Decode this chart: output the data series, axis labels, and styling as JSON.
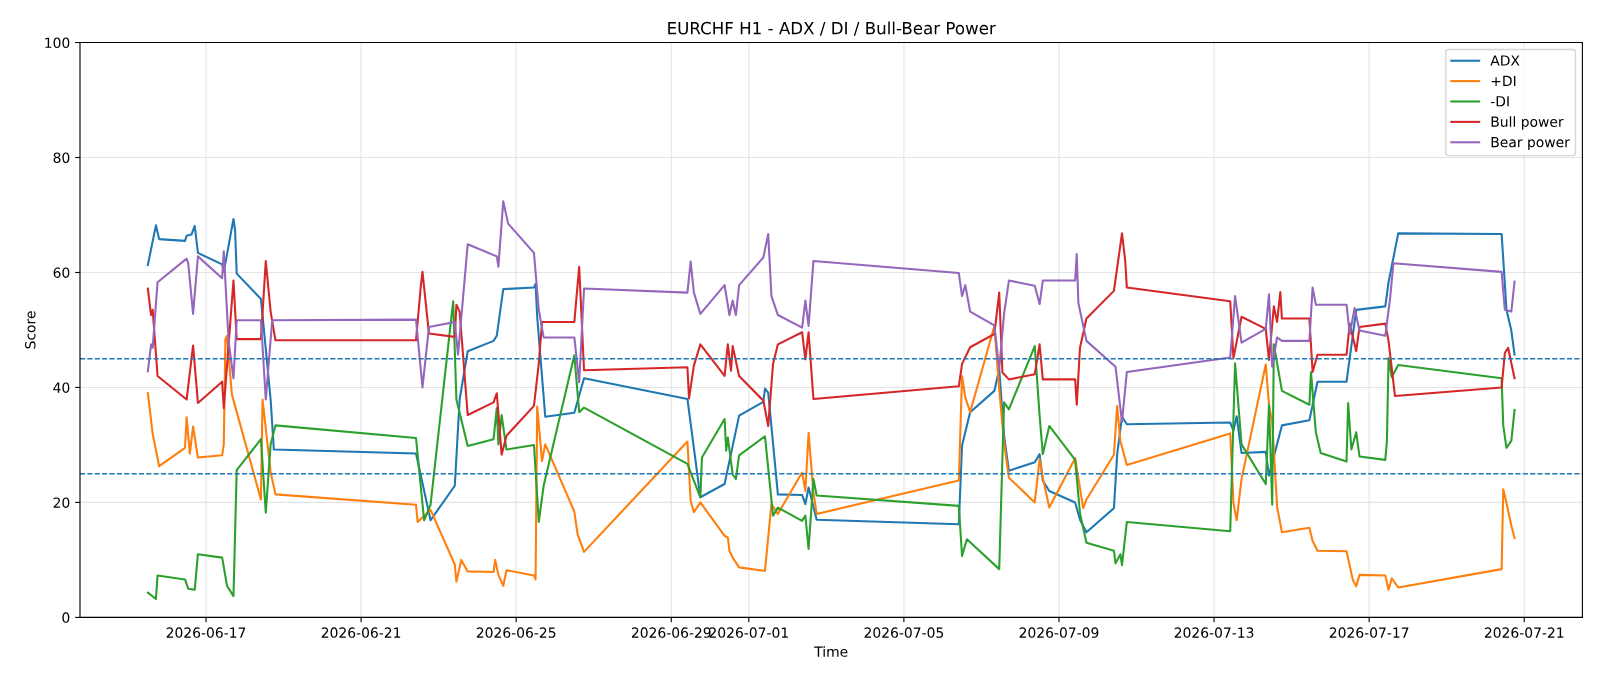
{
  "chart_data": {
    "type": "line",
    "title": "EURCHF H1 - ADX / DI / Bull-Bear Power",
    "xlabel": "Time",
    "ylabel": "Score",
    "xlim": [
      "2026-06-13T18:00",
      "2026-07-22T12:00"
    ],
    "xticks": [
      "2026-06-17",
      "2026-06-21",
      "2026-06-25",
      "2026-06-29",
      "2026-07-01",
      "2026-07-05",
      "2026-07-09",
      "2026-07-13",
      "2026-07-17",
      "2026-07-21"
    ],
    "ylim": [
      0,
      100
    ],
    "yticks": [
      0,
      20,
      40,
      60,
      80,
      100
    ],
    "grid": true,
    "legend": "top right",
    "ref_lines": [
      {
        "axis": "y",
        "value": 25,
        "color": "#1f77b4",
        "line_style": "dashed"
      },
      {
        "axis": "y",
        "value": 45,
        "color": "#1f77b4",
        "line_style": "dashed"
      }
    ],
    "series": [
      {
        "name": "ADX",
        "color": "#1f77b4",
        "x": [
          "2026-06-15T12:00",
          "2026-06-15T17:00",
          "2026-06-15T19:00",
          "2026-06-16T11:00",
          "2026-06-16T12:00",
          "2026-06-16T15:00",
          "2026-06-16T17:00",
          "2026-06-16T19:00",
          "2026-06-17T10:00",
          "2026-06-17T11:00",
          "2026-06-17T17:00",
          "2026-06-17T18:00",
          "2026-06-17T19:00",
          "2026-06-18T10:00",
          "2026-06-18T16:00",
          "2026-06-18T18:00",
          "2026-06-22T10:00",
          "2026-06-22T19:00",
          "2026-06-23T10:00",
          "2026-06-23T13:00",
          "2026-06-23T18:00",
          "2026-06-24T10:00",
          "2026-06-24T12:00",
          "2026-06-24T16:00",
          "2026-06-25T11:00",
          "2026-06-25T12:00",
          "2026-06-25T13:00",
          "2026-06-25T18:00",
          "2026-06-26T12:00",
          "2026-06-26T18:00",
          "2026-06-29T10:00",
          "2026-06-29T18:00",
          "2026-06-30T09:00",
          "2026-06-30T18:00",
          "2026-07-01T09:00",
          "2026-07-01T10:00",
          "2026-07-01T12:00",
          "2026-07-01T18:00",
          "2026-07-02T09:00",
          "2026-07-02T11:00",
          "2026-07-02T13:00",
          "2026-07-02T18:00",
          "2026-07-06T10:00",
          "2026-07-06T12:00",
          "2026-07-06T17:00",
          "2026-07-07T08:00",
          "2026-07-07T11:00",
          "2026-07-07T14:00",
          "2026-07-07T17:00",
          "2026-07-08T09:00",
          "2026-07-08T12:00",
          "2026-07-08T14:00",
          "2026-07-08T18:00",
          "2026-07-09T10:00",
          "2026-07-09T13:00",
          "2026-07-09T17:00",
          "2026-07-10T10:00",
          "2026-07-10T12:00",
          "2026-07-10T15:00",
          "2026-07-10T18:00",
          "2026-07-13T10:00",
          "2026-07-13T12:00",
          "2026-07-13T14:00",
          "2026-07-13T17:00",
          "2026-07-14T08:00",
          "2026-07-14T10:00",
          "2026-07-14T18:00",
          "2026-07-15T11:00",
          "2026-07-15T16:00",
          "2026-07-16T10:00",
          "2026-07-16T16:00",
          "2026-07-17T10:00",
          "2026-07-17T12:00",
          "2026-07-17T18:00",
          "2026-07-20T10:00",
          "2026-07-20T13:00",
          "2026-07-20T16:00",
          "2026-07-20T18:00"
        ],
        "values": [
          61.3,
          68.2,
          65.8,
          65.5,
          66.4,
          66.6,
          68.1,
          63.4,
          61.4,
          60.1,
          69.3,
          67.3,
          59.8,
          55.4,
          37.9,
          29.2,
          28.5,
          16.9,
          22.9,
          37.9,
          46.3,
          48.1,
          49.0,
          57.1,
          57.4,
          58.0,
          52.3,
          34.9,
          35.6,
          41.6,
          38.0,
          20.9,
          23.2,
          35.1,
          37.5,
          39.8,
          39.1,
          21.4,
          21.3,
          19.7,
          22.6,
          17.0,
          16.2,
          29.9,
          35.7,
          39.4,
          43.2,
          31.6,
          25.5,
          27.0,
          28.4,
          23.8,
          22.0,
          20.0,
          17.0,
          14.8,
          19.0,
          28.3,
          34.9,
          33.6,
          33.9,
          32.5,
          35.0,
          28.6,
          28.8,
          24.7,
          33.4,
          34.3,
          41.0,
          41.0,
          53.5,
          54.1,
          58.3,
          66.8,
          66.7,
          53.5,
          49.9,
          45.7
        ]
      },
      {
        "name": "+DI",
        "color": "#ff7f0e",
        "x": [
          "2026-06-15T12:00",
          "2026-06-15T15:00",
          "2026-06-15T19:00",
          "2026-06-16T11:00",
          "2026-06-16T12:00",
          "2026-06-16T14:00",
          "2026-06-16T16:00",
          "2026-06-16T19:00",
          "2026-06-17T10:00",
          "2026-06-17T11:00",
          "2026-06-17T12:00",
          "2026-06-17T13:00",
          "2026-06-17T16:00",
          "2026-06-18T10:00",
          "2026-06-18T11:00",
          "2026-06-18T16:00",
          "2026-06-18T19:00",
          "2026-06-22T10:00",
          "2026-06-22T11:00",
          "2026-06-22T19:00",
          "2026-06-23T10:00",
          "2026-06-23T11:00",
          "2026-06-23T14:00",
          "2026-06-23T18:00",
          "2026-06-24T10:00",
          "2026-06-24T11:00",
          "2026-06-24T13:00",
          "2026-06-24T16:00",
          "2026-06-24T18:00",
          "2026-06-25T11:00",
          "2026-06-25T12:00",
          "2026-06-25T13:00",
          "2026-06-25T16:00",
          "2026-06-25T18:00",
          "2026-06-26T12:00",
          "2026-06-26T14:00",
          "2026-06-26T18:00",
          "2026-06-29T10:00",
          "2026-06-29T12:00",
          "2026-06-29T14:00",
          "2026-06-29T18:00",
          "2026-06-30T09:00",
          "2026-06-30T11:00",
          "2026-06-30T12:00",
          "2026-06-30T14:00",
          "2026-06-30T18:00",
          "2026-07-01T10:00",
          "2026-07-01T14:00",
          "2026-07-01T18:00",
          "2026-07-02T09:00",
          "2026-07-02T11:00",
          "2026-07-02T13:00",
          "2026-07-02T16:00",
          "2026-07-02T18:00",
          "2026-07-06T10:00",
          "2026-07-06T12:00",
          "2026-07-06T14:00",
          "2026-07-06T17:00",
          "2026-07-07T08:00",
          "2026-07-07T11:00",
          "2026-07-07T14:00",
          "2026-07-07T17:00",
          "2026-07-08T09:00",
          "2026-07-08T12:00",
          "2026-07-08T14:00",
          "2026-07-08T18:00",
          "2026-07-09T10:00",
          "2026-07-09T15:00",
          "2026-07-09T17:00",
          "2026-07-10T10:00",
          "2026-07-10T12:00",
          "2026-07-10T14:00",
          "2026-07-10T18:00",
          "2026-07-13T10:00",
          "2026-07-13T12:00",
          "2026-07-13T14:00",
          "2026-07-13T17:00",
          "2026-07-14T08:00",
          "2026-07-14T10:00",
          "2026-07-14T12:00",
          "2026-07-14T15:00",
          "2026-07-14T18:00",
          "2026-07-15T11:00",
          "2026-07-15T13:00",
          "2026-07-15T16:00",
          "2026-07-16T10:00",
          "2026-07-16T14:00",
          "2026-07-16T16:00",
          "2026-07-16T18:00",
          "2026-07-17T10:00",
          "2026-07-17T12:00",
          "2026-07-17T14:00",
          "2026-07-17T18:00",
          "2026-07-20T10:00",
          "2026-07-20T11:00",
          "2026-07-20T13:00",
          "2026-07-20T16:00",
          "2026-07-20T18:00"
        ],
        "values": [
          39.0,
          31.9,
          26.3,
          29.5,
          34.8,
          28.5,
          33.2,
          27.8,
          28.2,
          30.1,
          48.4,
          49.0,
          38.8,
          20.5,
          37.9,
          25.3,
          21.4,
          19.6,
          16.6,
          18.7,
          9.2,
          6.2,
          10.0,
          8.0,
          7.9,
          10.0,
          7.4,
          5.5,
          8.2,
          7.3,
          6.6,
          36.7,
          27.2,
          30.1,
          18.4,
          14.5,
          11.4,
          30.6,
          20.3,
          18.3,
          20.0,
          14.2,
          13.9,
          11.6,
          10.4,
          8.7,
          8.1,
          19.7,
          18.0,
          25.2,
          22.0,
          32.1,
          21.7,
          18.0,
          23.8,
          42.0,
          38.3,
          35.7,
          50.7,
          39.7,
          30.4,
          24.3,
          20.0,
          27.5,
          24.3,
          19.1,
          27.7,
          19.0,
          20.5,
          28.3,
          36.8,
          30.7,
          26.5,
          32.0,
          19.9,
          16.9,
          24.1,
          44.0,
          37.0,
          33.8,
          19.3,
          14.8,
          15.6,
          13.3,
          11.6,
          11.5,
          6.4,
          5.4,
          7.4,
          7.3,
          4.8,
          6.8,
          5.2,
          8.4,
          22.3,
          19.9,
          16.0,
          13.8
        ]
      },
      {
        "name": "-DI",
        "color": "#2ca02c",
        "x": [
          "2026-06-15T12:00",
          "2026-06-15T17:00",
          "2026-06-15T18:00",
          "2026-06-16T11:00",
          "2026-06-16T13:00",
          "2026-06-16T17:00",
          "2026-06-16T19:00",
          "2026-06-17T10:00",
          "2026-06-17T13:00",
          "2026-06-17T17:00",
          "2026-06-17T19:00",
          "2026-06-18T10:00",
          "2026-06-18T13:00",
          "2026-06-18T16:00",
          "2026-06-18T19:00",
          "2026-06-22T10:00",
          "2026-06-22T15:00",
          "2026-06-22T19:00",
          "2026-06-23T09:00",
          "2026-06-23T11:00",
          "2026-06-23T18:00",
          "2026-06-24T10:00",
          "2026-06-24T12:00",
          "2026-06-24T13:00",
          "2026-06-24T15:00",
          "2026-06-24T18:00",
          "2026-06-25T11:00",
          "2026-06-25T14:00",
          "2026-06-25T17:00",
          "2026-06-26T12:00",
          "2026-06-26T15:00",
          "2026-06-26T18:00",
          "2026-06-29T10:00",
          "2026-06-29T18:00",
          "2026-06-29T19:00",
          "2026-06-30T09:00",
          "2026-06-30T10:00",
          "2026-06-30T11:00",
          "2026-06-30T14:00",
          "2026-06-30T16:00",
          "2026-06-30T18:00",
          "2026-07-01T10:00",
          "2026-07-01T15:00",
          "2026-07-01T18:00",
          "2026-07-02T09:00",
          "2026-07-02T11:00",
          "2026-07-02T13:00",
          "2026-07-02T16:00",
          "2026-07-02T18:00",
          "2026-07-06T10:00",
          "2026-07-06T12:00",
          "2026-07-06T15:00",
          "2026-07-07T11:00",
          "2026-07-07T14:00",
          "2026-07-07T17:00",
          "2026-07-08T09:00",
          "2026-07-08T12:00",
          "2026-07-08T14:00",
          "2026-07-08T18:00",
          "2026-07-09T10:00",
          "2026-07-09T13:00",
          "2026-07-09T17:00",
          "2026-07-10T10:00",
          "2026-07-10T11:00",
          "2026-07-10T14:00",
          "2026-07-10T15:00",
          "2026-07-10T18:00",
          "2026-07-13T10:00",
          "2026-07-13T13:00",
          "2026-07-13T17:00",
          "2026-07-14T08:00",
          "2026-07-14T10:00",
          "2026-07-14T12:00",
          "2026-07-14T13:00",
          "2026-07-14T18:00",
          "2026-07-15T11:00",
          "2026-07-15T12:00",
          "2026-07-15T15:00",
          "2026-07-15T18:00",
          "2026-07-16T10:00",
          "2026-07-16T11:00",
          "2026-07-16T13:00",
          "2026-07-16T16:00",
          "2026-07-16T18:00",
          "2026-07-17T10:00",
          "2026-07-17T11:00",
          "2026-07-17T12:00",
          "2026-07-17T14:00",
          "2026-07-17T18:00",
          "2026-07-20T10:00",
          "2026-07-20T11:00",
          "2026-07-20T13:00",
          "2026-07-20T16:00",
          "2026-07-20T18:00"
        ],
        "values": [
          4.3,
          3.2,
          7.3,
          6.6,
          5.0,
          4.8,
          11.0,
          10.4,
          5.5,
          3.7,
          25.6,
          31.0,
          18.2,
          30.1,
          33.4,
          31.2,
          16.9,
          19.6,
          55.0,
          37.9,
          29.8,
          31.0,
          36.4,
          30.1,
          35.2,
          29.2,
          30.0,
          16.6,
          22.9,
          45.6,
          35.7,
          36.5,
          26.7,
          20.9,
          27.8,
          34.5,
          29.0,
          31.3,
          24.9,
          24.1,
          28.2,
          31.5,
          17.7,
          19.1,
          16.8,
          17.7,
          11.9,
          24.1,
          21.2,
          19.4,
          10.7,
          13.6,
          8.4,
          37.4,
          36.2,
          47.2,
          35.1,
          28.4,
          33.3,
          27.4,
          18.1,
          13.0,
          11.6,
          9.4,
          11.0,
          9.1,
          16.6,
          15.0,
          44.2,
          30.1,
          23.2,
          37.0,
          19.6,
          47.5,
          39.4,
          37.0,
          42.7,
          32.2,
          28.6,
          27.1,
          37.3,
          29.2,
          32.2,
          28.0,
          27.4,
          30.7,
          45.1,
          41.8,
          43.9,
          41.6,
          33.4,
          29.5,
          30.7,
          36.1
        ]
      },
      {
        "name": "Bull power",
        "color": "#d62728",
        "x": [
          "2026-06-15T12:00",
          "2026-06-15T14:00",
          "2026-06-15T15:00",
          "2026-06-15T18:00",
          "2026-06-16T12:00",
          "2026-06-16T16:00",
          "2026-06-16T19:00",
          "2026-06-17T10:00",
          "2026-06-17T11:00",
          "2026-06-17T17:00",
          "2026-06-17T19:00",
          "2026-06-18T10:00",
          "2026-06-18T13:00",
          "2026-06-18T16:00",
          "2026-06-18T19:00",
          "2026-06-22T10:00",
          "2026-06-22T13:00",
          "2026-06-22T14:00",
          "2026-06-22T18:00",
          "2026-06-23T10:00",
          "2026-06-23T11:00",
          "2026-06-23T13:00",
          "2026-06-23T18:00",
          "2026-06-24T10:00",
          "2026-06-24T12:00",
          "2026-06-24T15:00",
          "2026-06-24T18:00",
          "2026-06-25T11:00",
          "2026-06-25T14:00",
          "2026-06-25T16:00",
          "2026-06-26T12:00",
          "2026-06-26T15:00",
          "2026-06-26T18:00",
          "2026-06-29T10:00",
          "2026-06-29T11:00",
          "2026-06-29T14:00",
          "2026-06-29T18:00",
          "2026-06-30T09:00",
          "2026-06-30T11:00",
          "2026-06-30T13:00",
          "2026-06-30T14:00",
          "2026-06-30T18:00",
          "2026-07-01T09:00",
          "2026-07-01T12:00",
          "2026-07-01T15:00",
          "2026-07-01T18:00",
          "2026-07-02T09:00",
          "2026-07-02T11:00",
          "2026-07-02T13:00",
          "2026-07-02T16:00",
          "2026-07-06T10:00",
          "2026-07-06T12:00",
          "2026-07-06T17:00",
          "2026-07-07T08:00",
          "2026-07-07T11:00",
          "2026-07-07T13:00",
          "2026-07-07T17:00",
          "2026-07-08T09:00",
          "2026-07-08T12:00",
          "2026-07-08T14:00",
          "2026-07-09T10:00",
          "2026-07-09T11:00",
          "2026-07-09T13:00",
          "2026-07-09T17:00",
          "2026-07-10T10:00",
          "2026-07-10T15:00",
          "2026-07-10T17:00",
          "2026-07-10T18:00",
          "2026-07-13T10:00",
          "2026-07-13T12:00",
          "2026-07-13T17:00",
          "2026-07-14T08:00",
          "2026-07-14T10:00",
          "2026-07-14T13:00",
          "2026-07-14T15:00",
          "2026-07-14T17:00",
          "2026-07-14T18:00",
          "2026-07-15T11:00",
          "2026-07-15T13:00",
          "2026-07-15T16:00",
          "2026-07-16T10:00",
          "2026-07-16T12:00",
          "2026-07-16T16:00",
          "2026-07-16T18:00",
          "2026-07-17T10:00",
          "2026-07-17T12:00",
          "2026-07-17T16:00",
          "2026-07-20T10:00",
          "2026-07-20T12:00",
          "2026-07-20T14:00",
          "2026-07-20T18:00"
        ],
        "values": [
          57.2,
          52.6,
          53.5,
          42.0,
          37.9,
          47.3,
          37.3,
          41.0,
          36.4,
          58.6,
          48.4,
          48.4,
          62.0,
          53.2,
          48.2,
          48.2,
          57.7,
          60.1,
          49.4,
          48.8,
          54.4,
          53.2,
          35.2,
          37.4,
          39.0,
          28.3,
          31.6,
          36.8,
          44.2,
          51.4,
          51.4,
          61.0,
          43.0,
          43.5,
          38.1,
          43.8,
          47.5,
          42.0,
          47.5,
          42.9,
          47.2,
          42.0,
          37.7,
          33.3,
          44.1,
          47.5,
          49.6,
          44.9,
          49.6,
          38.0,
          40.2,
          44.1,
          47.0,
          49.3,
          56.5,
          42.6,
          41.4,
          42.3,
          47.5,
          41.4,
          41.4,
          37.0,
          46.9,
          52.0,
          56.8,
          66.8,
          62.0,
          57.4,
          55.0,
          45.1,
          52.3,
          50.2,
          44.8,
          54.1,
          51.4,
          56.6,
          52.0,
          52.0,
          42.7,
          45.7,
          45.7,
          51.1,
          46.3,
          50.5,
          51.1,
          48.1,
          38.5,
          40.0,
          46.0,
          46.9,
          41.6
        ]
      },
      {
        "name": "Bear power",
        "color": "#9467bd",
        "x": [
          "2026-06-15T12:00",
          "2026-06-15T14:00",
          "2026-06-15T15:00",
          "2026-06-15T18:00",
          "2026-06-16T12:00",
          "2026-06-16T13:00",
          "2026-06-16T16:00",
          "2026-06-16T19:00",
          "2026-06-17T10:00",
          "2026-06-17T11:00",
          "2026-06-17T14:00",
          "2026-06-17T17:00",
          "2026-06-17T19:00",
          "2026-06-18T10:00",
          "2026-06-18T13:00",
          "2026-06-18T17:00",
          "2026-06-22T10:00",
          "2026-06-22T14:00",
          "2026-06-22T18:00",
          "2026-06-23T10:00",
          "2026-06-23T12:00",
          "2026-06-23T18:00",
          "2026-06-24T12:00",
          "2026-06-24T13:00",
          "2026-06-24T16:00",
          "2026-06-24T19:00",
          "2026-06-25T11:00",
          "2026-06-25T14:00",
          "2026-06-25T17:00",
          "2026-06-26T12:00",
          "2026-06-26T15:00",
          "2026-06-26T18:00",
          "2026-06-29T10:00",
          "2026-06-29T12:00",
          "2026-06-29T14:00",
          "2026-06-29T18:00",
          "2026-06-30T09:00",
          "2026-06-30T12:00",
          "2026-06-30T14:00",
          "2026-06-30T16:00",
          "2026-06-30T18:00",
          "2026-07-01T09:00",
          "2026-07-01T12:00",
          "2026-07-01T14:00",
          "2026-07-01T18:00",
          "2026-07-02T09:00",
          "2026-07-02T11:00",
          "2026-07-02T13:00",
          "2026-07-02T16:00",
          "2026-07-06T10:00",
          "2026-07-06T12:00",
          "2026-07-06T14:00",
          "2026-07-06T17:00",
          "2026-07-07T08:00",
          "2026-07-07T11:00",
          "2026-07-07T14:00",
          "2026-07-07T17:00",
          "2026-07-08T09:00",
          "2026-07-08T12:00",
          "2026-07-08T14:00",
          "2026-07-09T10:00",
          "2026-07-09T11:00",
          "2026-07-09T12:00",
          "2026-07-09T17:00",
          "2026-07-10T11:00",
          "2026-07-10T15:00",
          "2026-07-10T18:00",
          "2026-07-13T10:00",
          "2026-07-13T13:00",
          "2026-07-13T17:00",
          "2026-07-14T08:00",
          "2026-07-14T10:00",
          "2026-07-14T12:00",
          "2026-07-14T15:00",
          "2026-07-14T18:00",
          "2026-07-15T11:00",
          "2026-07-15T13:00",
          "2026-07-15T15:00",
          "2026-07-15T17:00",
          "2026-07-16T10:00",
          "2026-07-16T12:00",
          "2026-07-16T15:00",
          "2026-07-16T18:00",
          "2026-07-17T10:00",
          "2026-07-17T13:00",
          "2026-07-17T15:00",
          "2026-07-20T10:00",
          "2026-07-20T12:00",
          "2026-07-20T16:00",
          "2026-07-20T18:00"
        ],
        "values": [
          42.8,
          47.5,
          46.9,
          58.3,
          62.4,
          61.6,
          52.8,
          62.8,
          59.0,
          63.7,
          48.0,
          41.6,
          51.7,
          51.7,
          37.9,
          51.7,
          51.8,
          40.0,
          50.5,
          51.4,
          45.7,
          64.9,
          62.8,
          61.0,
          72.4,
          68.5,
          63.4,
          53.5,
          48.7,
          48.7,
          40.9,
          57.2,
          56.5,
          61.9,
          56.5,
          52.8,
          57.8,
          52.6,
          55.1,
          52.6,
          57.8,
          62.6,
          66.7,
          55.9,
          52.6,
          50.4,
          55.1,
          50.7,
          62.0,
          59.9,
          55.9,
          57.8,
          53.2,
          50.8,
          43.2,
          52.8,
          58.6,
          57.7,
          54.5,
          58.6,
          58.6,
          63.2,
          54.7,
          48.1,
          43.6,
          34.0,
          42.7,
          45.2,
          55.9,
          47.8,
          50.2,
          56.2,
          43.6,
          48.7,
          48.1,
          48.1,
          57.4,
          54.4,
          54.4,
          54.4,
          49.3,
          53.8,
          49.9,
          49.0,
          55.6,
          61.6,
          60.1,
          53.5,
          53.2,
          58.4
        ]
      }
    ]
  }
}
